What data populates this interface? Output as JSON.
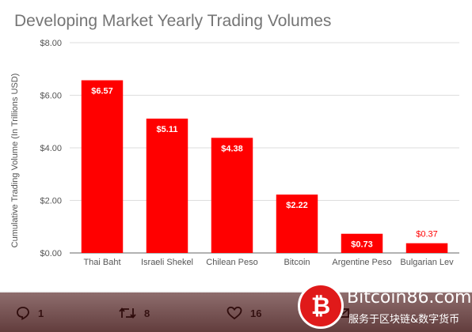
{
  "chart_data": {
    "type": "bar",
    "title": "Developing Market Yearly Trading Volumes",
    "ylabel": "Cumulative Trading Volume (In Trillions USD)",
    "xlabel": "",
    "categories": [
      "Thai Baht",
      "Israeli Shekel",
      "Chilean Peso",
      "Bitcoin",
      "Argentine Peso",
      "Bulgarian Lev"
    ],
    "values": [
      6.57,
      5.11,
      4.38,
      2.22,
      0.73,
      0.37
    ],
    "data_labels": [
      "$6.57",
      "$5.11",
      "$4.38",
      "$2.22",
      "$0.73",
      "$0.37"
    ],
    "ylim": [
      0,
      8
    ],
    "yticks": [
      0,
      2,
      4,
      6,
      8
    ],
    "ytick_labels": [
      "$0.00",
      "$2.00",
      "$4.00",
      "$6.00",
      "$8.00"
    ],
    "grid": true,
    "bar_color": "#ff0000"
  },
  "actions": {
    "replies": "1",
    "retweets": "8",
    "likes": "16"
  },
  "watermark": {
    "logo_char": "₿",
    "site": "Bitcoin86.com",
    "tagline": "服务于区块链&数字货币"
  }
}
